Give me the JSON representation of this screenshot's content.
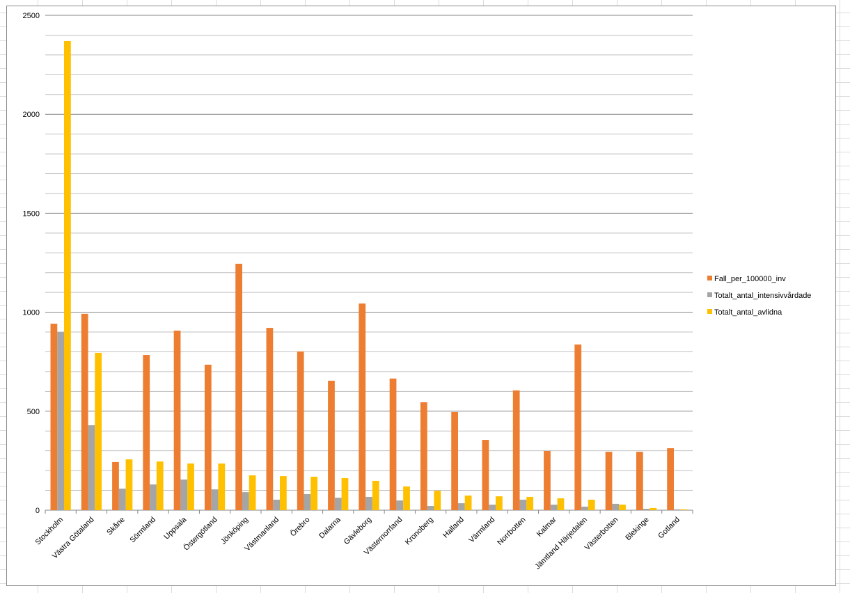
{
  "chart_data": {
    "type": "bar",
    "title": "",
    "xlabel": "",
    "ylabel": "",
    "ylim": [
      0,
      2500
    ],
    "yticks": [
      0,
      500,
      1000,
      1500,
      2000,
      2500
    ],
    "minor_grid_step": 100,
    "grid": true,
    "legend_position": "right",
    "categories": [
      "Stockholm",
      "Västra Götaland",
      "Skåne",
      "Sörmland",
      "Uppsala",
      "Östergötland",
      "Jönköping",
      "Västmanland",
      "Örebro",
      "Dalarna",
      "Gävleborg",
      "Västernorrland",
      "Kronoberg",
      "Halland",
      "Värmland",
      "Norrbotten",
      "Kalmar",
      "Jämtland Härjedalen",
      "Västerbotten",
      "Blekinge",
      "Gotland"
    ],
    "series": [
      {
        "name": "Fall_per_100000_inv",
        "color": "#ed7d31",
        "values": [
          942,
          992,
          243,
          784,
          907,
          735,
          1245,
          921,
          802,
          654,
          1044,
          665,
          545,
          496,
          355,
          605,
          299,
          837,
          295,
          295,
          313
        ]
      },
      {
        "name": "Totalt_antal_intensivvårdade",
        "color": "#a5a5a5",
        "values": [
          900,
          429,
          109,
          130,
          155,
          105,
          91,
          53,
          81,
          63,
          67,
          49,
          21,
          35,
          28,
          53,
          28,
          18,
          32,
          7,
          4
        ]
      },
      {
        "name": "Totalt_antal_avlidna",
        "color": "#ffc000",
        "values": [
          2370,
          795,
          257,
          246,
          236,
          236,
          176,
          172,
          169,
          162,
          148,
          120,
          98,
          74,
          70,
          67,
          60,
          53,
          28,
          11,
          4
        ]
      }
    ]
  }
}
